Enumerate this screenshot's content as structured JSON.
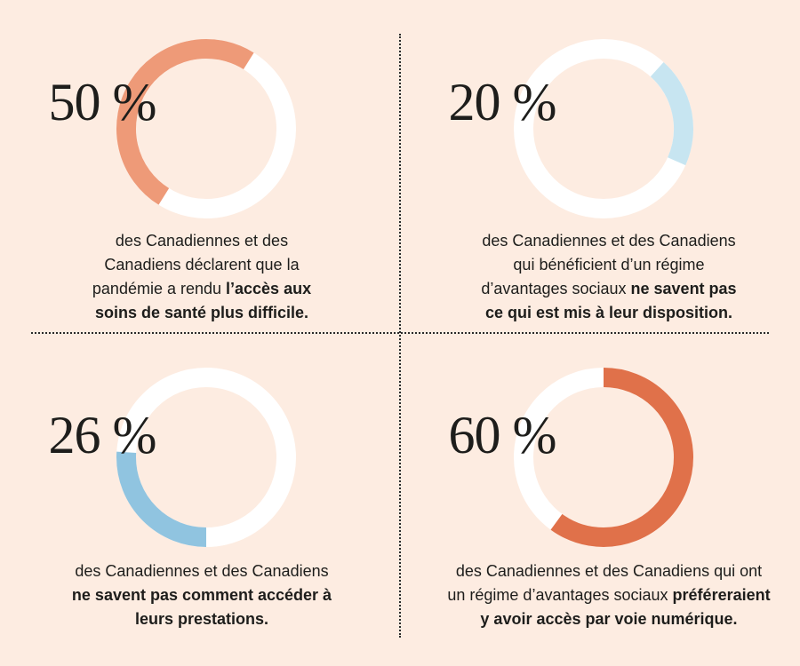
{
  "chart_data": [
    {
      "type": "pie",
      "values": [
        50
      ],
      "value_label": "50 %",
      "arc_color": "#ee9a78",
      "track_color": "#ffffff",
      "caption_lines": [
        [
          {
            "t": "des Canadiennes et des",
            "b": false
          }
        ],
        [
          {
            "t": "Canadiens déclarent que la",
            "b": false
          }
        ],
        [
          {
            "t": "pandémie a rendu ",
            "b": false
          },
          {
            "t": "l’accès aux",
            "b": true
          }
        ],
        [
          {
            "t": "soins de santé plus difficile.",
            "b": true
          }
        ]
      ]
    },
    {
      "type": "pie",
      "values": [
        20
      ],
      "value_label": "20 %",
      "arc_color": "#c7e5f1",
      "track_color": "#ffffff",
      "caption_lines": [
        [
          {
            "t": "des Canadiennes et des Canadiens",
            "b": false
          }
        ],
        [
          {
            "t": "qui bénéficient d’un régime",
            "b": false
          }
        ],
        [
          {
            "t": "d’avantages sociaux ",
            "b": false
          },
          {
            "t": "ne savent pas",
            "b": true
          }
        ],
        [
          {
            "t": "ce qui est mis à leur disposition.",
            "b": true
          }
        ]
      ]
    },
    {
      "type": "pie",
      "values": [
        26
      ],
      "value_label": "26 %",
      "arc_color": "#90c4e0",
      "track_color": "#ffffff",
      "caption_lines": [
        [
          {
            "t": "des Canadiennes et des Canadiens",
            "b": false
          }
        ],
        [
          {
            "t": "ne savent pas comment accéder à",
            "b": true
          }
        ],
        [
          {
            "t": "leurs prestations.",
            "b": true
          }
        ]
      ]
    },
    {
      "type": "pie",
      "values": [
        60
      ],
      "value_label": "60 %",
      "arc_color": "#e0714a",
      "track_color": "#ffffff",
      "caption_lines": [
        [
          {
            "t": "des Canadiennes et des Canadiens qui ont",
            "b": false
          }
        ],
        [
          {
            "t": "un régime d’avantages sociaux ",
            "b": false
          },
          {
            "t": "préféreraient",
            "b": true
          }
        ],
        [
          {
            "t": "y avoir accès par voie numérique.",
            "b": true
          }
        ]
      ]
    }
  ],
  "colors": {
    "background": "#fdece1",
    "text": "#1d1d1b",
    "divider": "#2a2a2a"
  }
}
